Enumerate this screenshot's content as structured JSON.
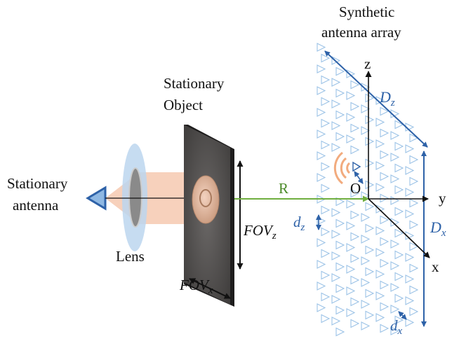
{
  "labels": {
    "synthetic_line1": "Synthetic",
    "synthetic_line2": "antenna array",
    "stationary_object_line1": "Stationary",
    "stationary_object_line2": "Object",
    "stationary_antenna_line1": "Stationary",
    "stationary_antenna_line2": "antenna",
    "lens": "Lens",
    "range": "R",
    "origin": "O",
    "axis_x": "x",
    "axis_y": "y",
    "axis_z": "z"
  },
  "math": {
    "Dz_main": "D",
    "Dz_sub": "z",
    "Dx_main": "D",
    "Dx_sub": "x",
    "dz_main": "d",
    "dz_sub": "z",
    "dx_main": "d",
    "dx_sub": "x",
    "FOVz_main": "FOV",
    "FOVz_sub": "z",
    "FOVx_main": "FOV",
    "FOVx_sub": "x"
  },
  "colors": {
    "array_blue": "#2e62a8",
    "element_blue": "#9cc3e6",
    "beam": "#f4c2a5",
    "lens": "#bcd6ee",
    "object": "#565453",
    "range_line": "#6fae3f",
    "wave": "#f2ab7e"
  }
}
